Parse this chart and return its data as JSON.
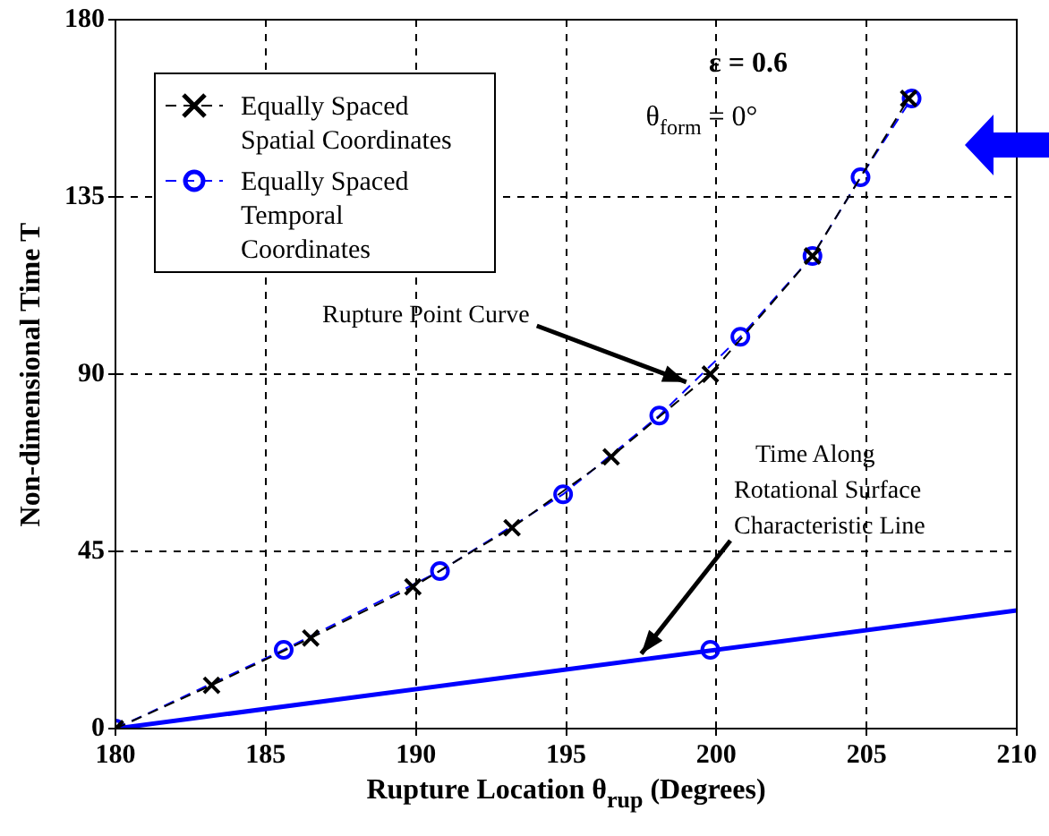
{
  "chart_data": {
    "type": "line",
    "xlabel": "Rupture Location θ$_{rup}$ (Degrees)",
    "ylabel": "Non-dimensional Time T",
    "xlim": [
      180,
      210
    ],
    "xticks": [
      180,
      185,
      190,
      195,
      200,
      205,
      210
    ],
    "ylim": [
      0,
      180
    ],
    "yticks": [
      0,
      45,
      90,
      135,
      180
    ],
    "grid": true,
    "legend": "top left",
    "series": [
      {
        "name": "Equally Spaced Spatial Coordinates",
        "color": "#000000",
        "marker": "cross",
        "line_style": "dashed",
        "x": [
          180,
          183.2,
          186.5,
          189.9,
          193.2,
          196.5,
          199.8,
          203.2,
          206.4
        ],
        "values": [
          0,
          11,
          23,
          36,
          51,
          69,
          90,
          120,
          160
        ]
      },
      {
        "name": "Equally Spaced Temporal Coordinates",
        "color": "#0000ff",
        "marker": "circle",
        "line_style": "dashed",
        "x": [
          180,
          185.6,
          190.8,
          194.9,
          198.1,
          200.8,
          203.2,
          204.8,
          206.5
        ],
        "values": [
          0,
          20,
          40,
          59.5,
          79.5,
          99.5,
          120,
          140,
          160
        ]
      },
      {
        "color": "#0000ff",
        "marker": "none",
        "line_style": "solid",
        "x": [
          180,
          210
        ],
        "values": [
          0,
          30
        ]
      },
      {
        "type": "scatter",
        "color": "#0000ff",
        "marker": "circle",
        "x": [
          199.8
        ],
        "values": [
          20
        ]
      }
    ],
    "annotations": [
      "ε = 0.6",
      "θ$_{form}$ = 0°",
      {
        "text": "Rupture Point Curve",
        "x": 199,
        "y": 88
      },
      {
        "text": "Time Along Rotational Surface Characteristic Line",
        "x": 197.5,
        "y": 19
      }
    ]
  }
}
